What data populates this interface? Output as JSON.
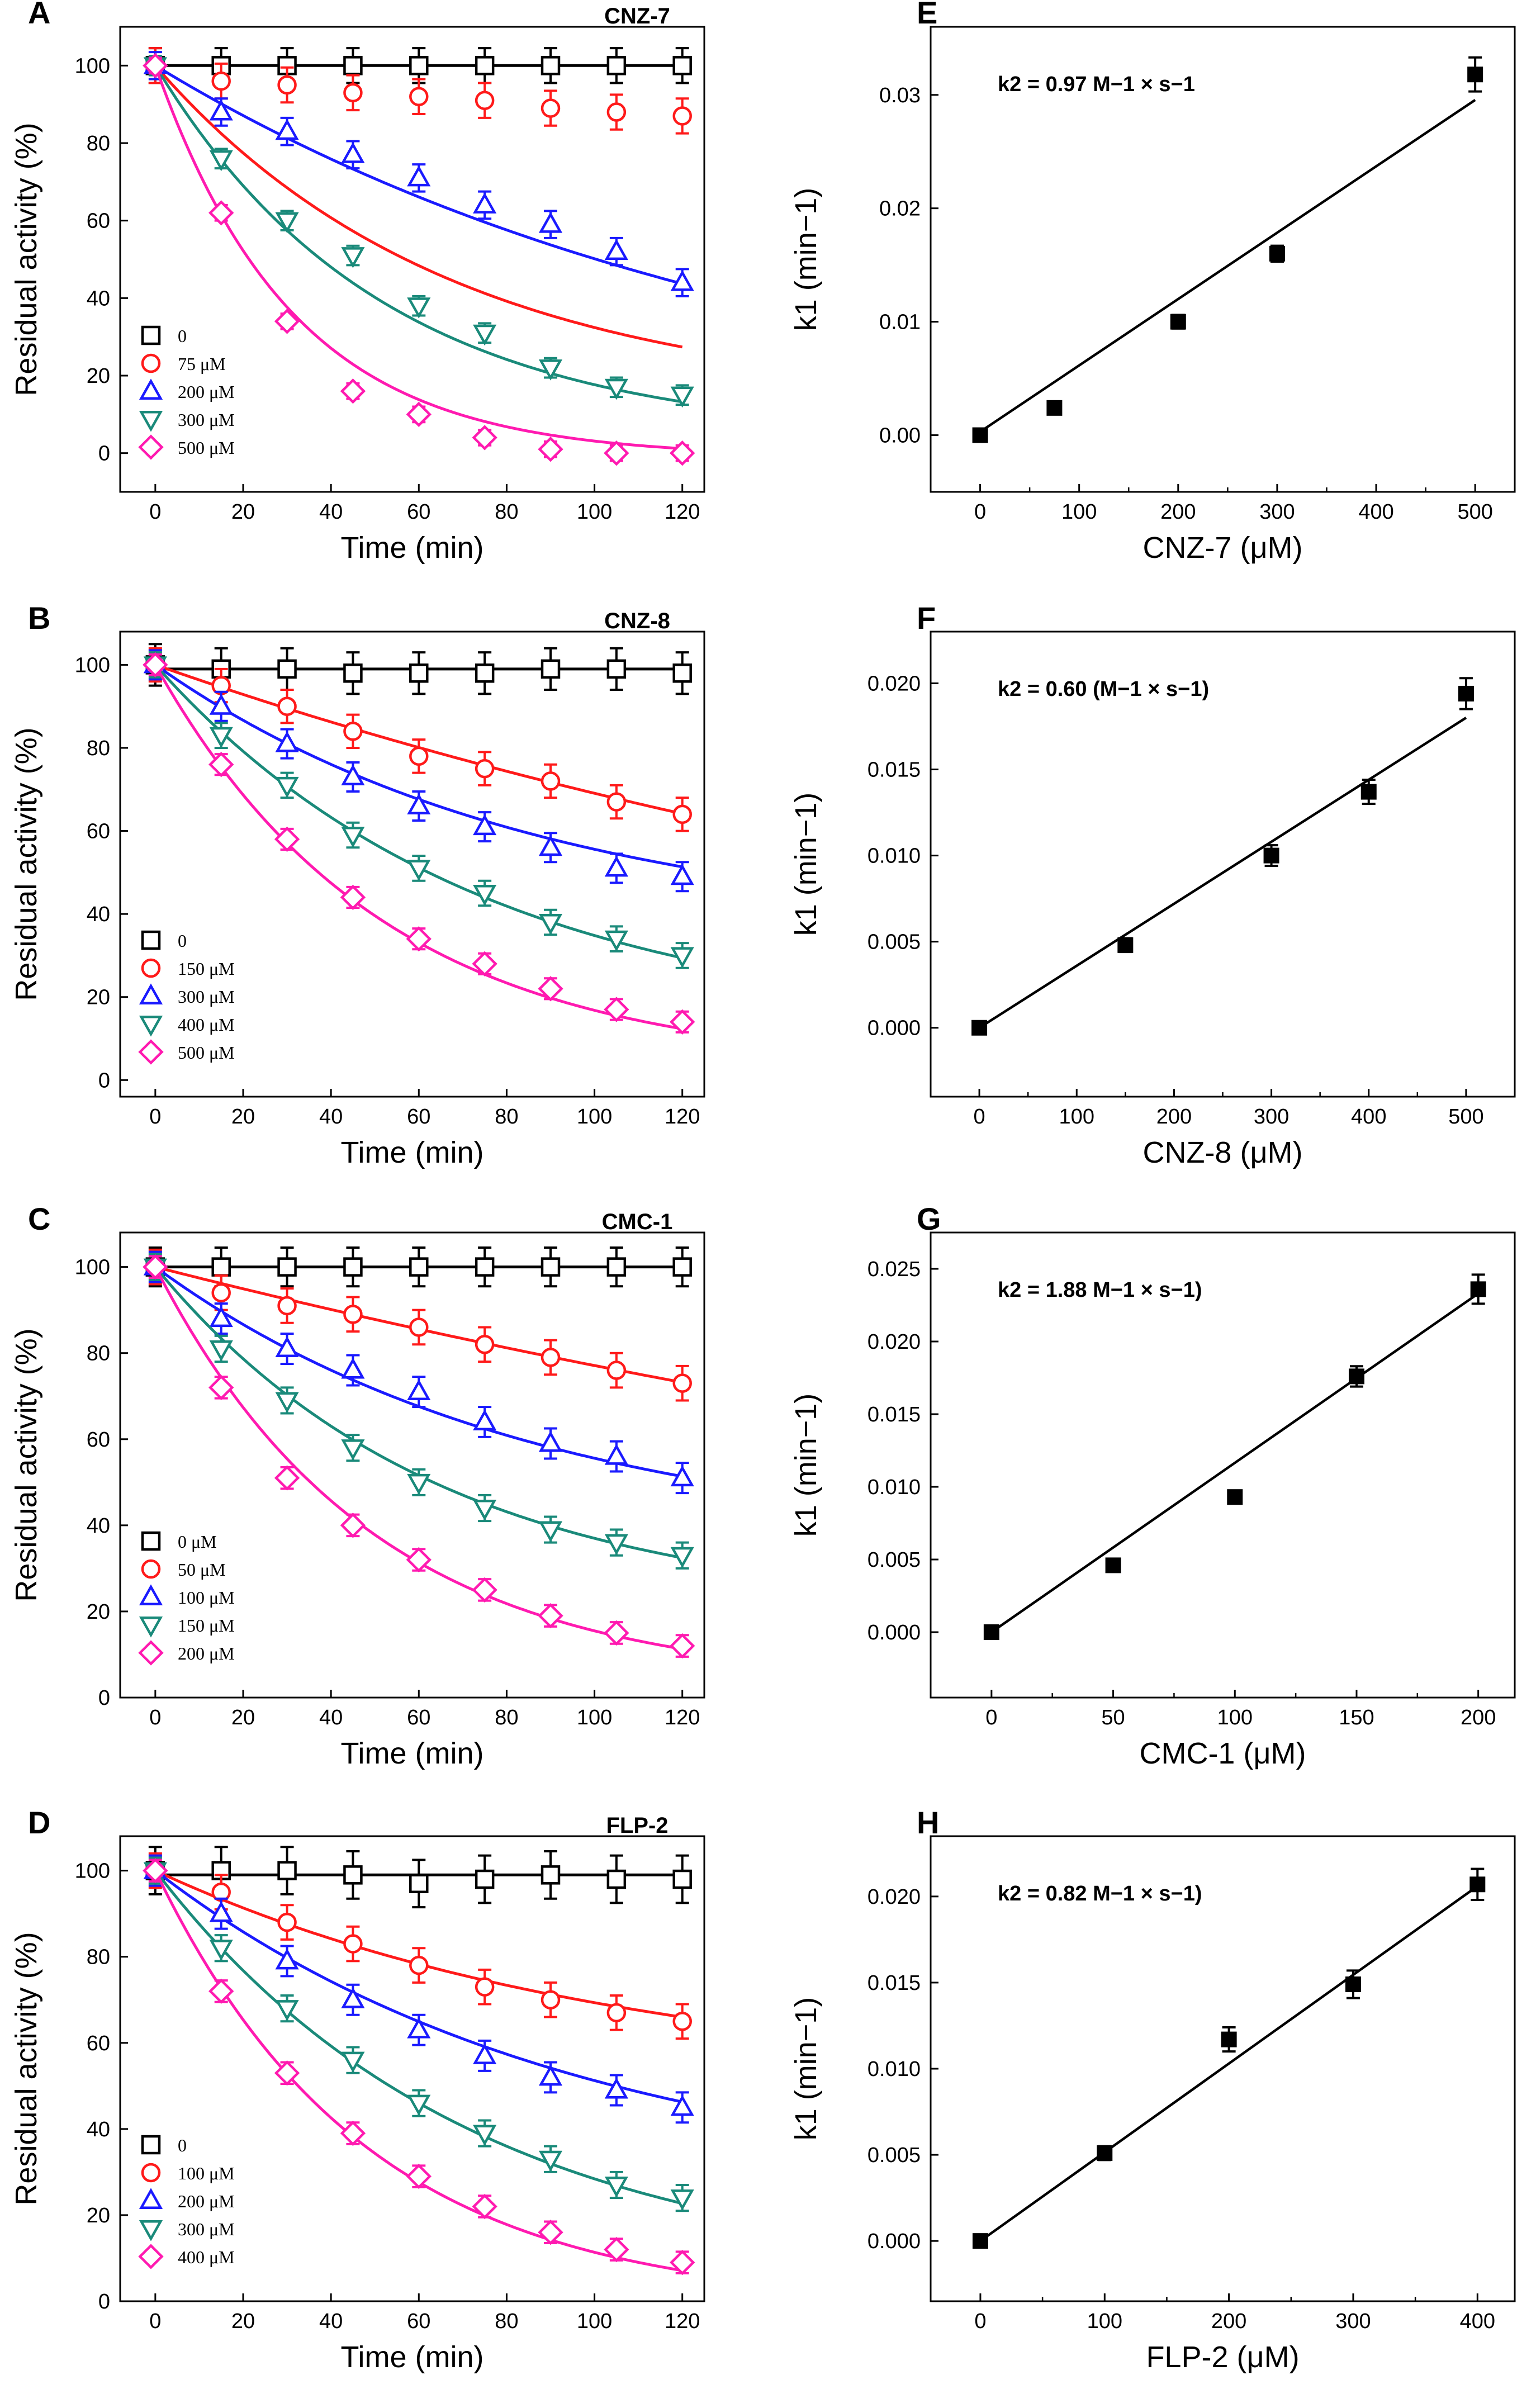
{
  "chart_data": [
    {
      "panel": "A",
      "type": "scatter",
      "title": "CNZ-7",
      "xlabel": "Time (min)",
      "ylabel": "Residual activity (%)",
      "xlim": [
        -8,
        125
      ],
      "ylim": [
        -10,
        110
      ],
      "xticks": [
        0,
        20,
        40,
        60,
        80,
        100,
        120
      ],
      "yticks": [
        0,
        20,
        40,
        60,
        80,
        100
      ],
      "x": [
        0,
        15,
        30,
        45,
        60,
        75,
        90,
        105,
        120
      ],
      "series": [
        {
          "name": "0",
          "color": "#000000",
          "marker": "square",
          "values": [
            100,
            100,
            100,
            100,
            100,
            100,
            100,
            100,
            100
          ],
          "err": 4.5,
          "fit": {
            "kind": "flat",
            "a": 100
          }
        },
        {
          "name": "75 μM",
          "color": "#ff1a1a",
          "marker": "circle",
          "values": [
            100,
            96,
            95,
            93,
            92,
            91,
            89,
            88,
            87
          ],
          "err": 4.5,
          "fit": {
            "kind": "exp",
            "a": 87,
            "k": 0.015,
            "c": 13
          }
        },
        {
          "name": "200 μM",
          "color": "#1a1aff",
          "marker": "triangle-up",
          "values": [
            100,
            88,
            83,
            77,
            71,
            64,
            59,
            52,
            44
          ],
          "err": 3.5,
          "fit": {
            "kind": "exp",
            "a": 100,
            "k": 0.0069,
            "c": 0
          }
        },
        {
          "name": "300 μM",
          "color": "#1a8a7a",
          "marker": "triangle-down",
          "values": [
            100,
            76,
            60,
            51,
            38,
            31,
            22,
            17,
            15
          ],
          "err": 2.5,
          "fit": {
            "kind": "exp",
            "a": 96,
            "k": 0.0195,
            "c": 4
          }
        },
        {
          "name": "500 μM",
          "color": "#ff1ab0",
          "marker": "diamond",
          "values": [
            100,
            62,
            34,
            16,
            10,
            4,
            1,
            0,
            0
          ],
          "err": 2,
          "fit": {
            "kind": "exp",
            "a": 101,
            "k": 0.032,
            "c": -1
          }
        }
      ],
      "legend_position": "lower-left"
    },
    {
      "panel": "B",
      "type": "scatter",
      "title": "CNZ-8",
      "xlabel": "Time (min)",
      "ylabel": "Residual activity (%)",
      "xlim": [
        -8,
        125
      ],
      "ylim": [
        -4,
        108
      ],
      "xticks": [
        0,
        20,
        40,
        60,
        80,
        100,
        120
      ],
      "yticks": [
        0,
        20,
        40,
        60,
        80,
        100
      ],
      "x": [
        0,
        15,
        30,
        45,
        60,
        75,
        90,
        105,
        120
      ],
      "series": [
        {
          "name": "0",
          "color": "#000000",
          "marker": "square",
          "values": [
            100,
            99,
            99,
            98,
            98,
            98,
            99,
            99,
            98
          ],
          "err": 5,
          "fit": {
            "kind": "flat",
            "a": 99
          }
        },
        {
          "name": "150 μM",
          "color": "#ff1a1a",
          "marker": "circle",
          "values": [
            100,
            95,
            90,
            84,
            78,
            75,
            72,
            67,
            64
          ],
          "err": 4,
          "fit": {
            "kind": "exp",
            "a": 100,
            "k": 0.0037,
            "c": 0
          }
        },
        {
          "name": "300 μM",
          "color": "#1a1aff",
          "marker": "triangle-up",
          "values": [
            100,
            90,
            81,
            73,
            66,
            61,
            56,
            51,
            49
          ],
          "err": 3.5,
          "fit": {
            "kind": "exp",
            "a": 65,
            "k": 0.0115,
            "c": 35
          }
        },
        {
          "name": "400 μM",
          "color": "#1a8a7a",
          "marker": "triangle-down",
          "values": [
            100,
            83,
            71,
            59,
            51,
            45,
            38,
            34,
            30
          ],
          "err": 3,
          "fit": {
            "kind": "exp",
            "a": 88,
            "k": 0.0135,
            "c": 12
          }
        },
        {
          "name": "500 μM",
          "color": "#ff1ab0",
          "marker": "diamond",
          "values": [
            100,
            76,
            58,
            44,
            34,
            28,
            22,
            17,
            14
          ],
          "err": 2.5,
          "fit": {
            "kind": "exp",
            "a": 97,
            "k": 0.0195,
            "c": 3
          }
        }
      ],
      "legend_position": "lower-left"
    },
    {
      "panel": "C",
      "type": "scatter",
      "title": "CMC-1",
      "xlabel": "Time (min)",
      "ylabel": "Residual activity (%)",
      "xlim": [
        -8,
        125
      ],
      "ylim": [
        0,
        108
      ],
      "xticks": [
        0,
        20,
        40,
        60,
        80,
        100,
        120
      ],
      "yticks": [
        0,
        20,
        40,
        60,
        80,
        100
      ],
      "x": [
        0,
        15,
        30,
        45,
        60,
        75,
        90,
        105,
        120
      ],
      "series": [
        {
          "name": "0 μM",
          "color": "#000000",
          "marker": "square",
          "values": [
            100,
            100,
            100,
            100,
            100,
            100,
            100,
            100,
            100
          ],
          "err": 4.5,
          "fit": {
            "kind": "flat",
            "a": 100
          }
        },
        {
          "name": "50 μM",
          "color": "#ff1a1a",
          "marker": "circle",
          "values": [
            100,
            94,
            91,
            89,
            86,
            82,
            79,
            76,
            73
          ],
          "err": 4,
          "fit": {
            "kind": "exp",
            "a": 100,
            "k": 0.0026,
            "c": 0
          }
        },
        {
          "name": "100 μM",
          "color": "#1a1aff",
          "marker": "triangle-up",
          "values": [
            100,
            88,
            81,
            76,
            71,
            64,
            59,
            56,
            51
          ],
          "err": 3.5,
          "fit": {
            "kind": "exp",
            "a": 65,
            "k": 0.0115,
            "c": 35
          }
        },
        {
          "name": "150 μM",
          "color": "#1a8a7a",
          "marker": "triangle-down",
          "values": [
            100,
            81,
            69,
            58,
            50,
            44,
            39,
            36,
            33
          ],
          "err": 3,
          "fit": {
            "kind": "exp",
            "a": 80,
            "k": 0.0155,
            "c": 20
          }
        },
        {
          "name": "200 μM",
          "color": "#ff1ab0",
          "marker": "diamond",
          "values": [
            100,
            72,
            51,
            40,
            32,
            25,
            19,
            15,
            12
          ],
          "err": 2.5,
          "fit": {
            "kind": "exp",
            "a": 97,
            "k": 0.0205,
            "c": 3
          }
        }
      ],
      "legend_position": "lower-left"
    },
    {
      "panel": "D",
      "type": "scatter",
      "title": "FLP-2",
      "xlabel": "Time (min)",
      "ylabel": "Residual activity (%)",
      "xlim": [
        -8,
        125
      ],
      "ylim": [
        0,
        108
      ],
      "xticks": [
        0,
        20,
        40,
        60,
        80,
        100,
        120
      ],
      "yticks": [
        0,
        20,
        40,
        60,
        80,
        100
      ],
      "x": [
        0,
        15,
        30,
        45,
        60,
        75,
        90,
        105,
        120
      ],
      "series": [
        {
          "name": "0",
          "color": "#000000",
          "marker": "square",
          "values": [
            100,
            100,
            100,
            99,
            97,
            98,
            99,
            98,
            98
          ],
          "err": 5.5,
          "fit": {
            "kind": "flat",
            "a": 99
          }
        },
        {
          "name": "100 μM",
          "color": "#ff1a1a",
          "marker": "circle",
          "values": [
            100,
            95,
            88,
            83,
            78,
            73,
            70,
            67,
            65
          ],
          "err": 4,
          "fit": {
            "kind": "exp",
            "a": 50,
            "k": 0.0095,
            "c": 50
          }
        },
        {
          "name": "200 μM",
          "color": "#1a1aff",
          "marker": "triangle-up",
          "values": [
            100,
            90,
            79,
            70,
            63,
            57,
            52,
            49,
            45
          ],
          "err": 3.5,
          "fit": {
            "kind": "exp",
            "a": 75,
            "k": 0.0105,
            "c": 25
          }
        },
        {
          "name": "300 μM",
          "color": "#1a8a7a",
          "marker": "triangle-down",
          "values": [
            100,
            82,
            68,
            56,
            46,
            39,
            33,
            27,
            24
          ],
          "err": 3,
          "fit": {
            "kind": "exp",
            "a": 95,
            "k": 0.014,
            "c": 5
          }
        },
        {
          "name": "400 μM",
          "color": "#ff1ab0",
          "marker": "diamond",
          "values": [
            100,
            72,
            53,
            39,
            29,
            22,
            16,
            12,
            9
          ],
          "err": 2.5,
          "fit": {
            "kind": "exp",
            "a": 101,
            "k": 0.021,
            "c": -1
          }
        }
      ],
      "legend_position": "lower-left"
    },
    {
      "panel": "E",
      "type": "scatter",
      "annotation": "k2 = 0.97 M−1 × s−1",
      "xlabel": "CNZ-7 (μM)",
      "ylabel": "k1 (min−1)",
      "xlim": [
        -50,
        540
      ],
      "ylim": [
        -0.005,
        0.036
      ],
      "xticks": [
        0,
        100,
        200,
        300,
        400,
        500
      ],
      "yticks": [
        0.0,
        0.01,
        0.02,
        0.03
      ],
      "ytick_labels": [
        "0.00",
        "0.01",
        "0.02",
        "0.03"
      ],
      "x": [
        0,
        75,
        200,
        300,
        500
      ],
      "values": [
        0.0,
        0.0024,
        0.01,
        0.016,
        0.0318
      ],
      "err": [
        0.0003,
        0.0004,
        0.0006,
        0.0007,
        0.0015
      ],
      "fit": {
        "slope": 5.85e-05,
        "intercept": 0.0003,
        "x_range": [
          0,
          500
        ]
      }
    },
    {
      "panel": "F",
      "type": "scatter",
      "annotation": "k2 = 0.60 (M−1 × s−1)",
      "xlabel": "CNZ-8 (μM)",
      "ylabel": "k1 (min−1)",
      "xlim": [
        -50,
        550
      ],
      "ylim": [
        -0.004,
        0.023
      ],
      "xticks": [
        0,
        100,
        200,
        300,
        400,
        500
      ],
      "yticks": [
        0.0,
        0.005,
        0.01,
        0.015,
        0.02
      ],
      "ytick_labels": [
        "0.000",
        "0.005",
        "0.010",
        "0.015",
        "0.020"
      ],
      "x": [
        0,
        150,
        300,
        400,
        500
      ],
      "values": [
        0.0,
        0.0048,
        0.01,
        0.0137,
        0.0194
      ],
      "err": [
        0.0002,
        0.0004,
        0.0006,
        0.0007,
        0.0009
      ],
      "fit": {
        "slope": 3.6e-05,
        "intercept": 0.0,
        "x_range": [
          0,
          500
        ]
      }
    },
    {
      "panel": "G",
      "type": "scatter",
      "annotation": "k2 = 1.88 M−1 × s−1)",
      "xlabel": "CMC-1 (μM)",
      "ylabel": "k1 (min−1)",
      "xlim": [
        -25,
        215
      ],
      "ylim": [
        -0.0045,
        0.0275
      ],
      "xticks": [
        0,
        50,
        100,
        150,
        200
      ],
      "yticks": [
        0.0,
        0.005,
        0.01,
        0.015,
        0.02,
        0.025
      ],
      "ytick_labels": [
        "0.000",
        "0.005",
        "0.010",
        "0.015",
        "0.020",
        "0.025"
      ],
      "x": [
        0,
        50,
        100,
        150,
        200
      ],
      "values": [
        0.0,
        0.0046,
        0.0093,
        0.0176,
        0.0236
      ],
      "err": [
        0.0002,
        0.0004,
        0.0004,
        0.0007,
        0.001
      ],
      "fit": {
        "slope": 0.0001165,
        "intercept": 0.0,
        "x_range": [
          0,
          200
        ]
      }
    },
    {
      "panel": "H",
      "type": "scatter",
      "annotation": "k2 = 0.82 M−1 × s−1)",
      "xlabel": "FLP-2 (μM)",
      "ylabel": "k1 (min−1)",
      "xlim": [
        -40,
        430
      ],
      "ylim": [
        -0.0035,
        0.0235
      ],
      "xticks": [
        0,
        100,
        200,
        300,
        400
      ],
      "yticks": [
        0.0,
        0.005,
        0.01,
        0.015,
        0.02
      ],
      "ytick_labels": [
        "0.000",
        "0.005",
        "0.010",
        "0.015",
        "0.020"
      ],
      "x": [
        0,
        100,
        200,
        300,
        400
      ],
      "values": [
        0.0,
        0.0051,
        0.0117,
        0.0149,
        0.0207
      ],
      "err": [
        0.0002,
        0.0004,
        0.0007,
        0.0008,
        0.0009
      ],
      "fit": {
        "slope": 5.15e-05,
        "intercept": 0.0,
        "x_range": [
          0,
          400
        ]
      }
    }
  ]
}
